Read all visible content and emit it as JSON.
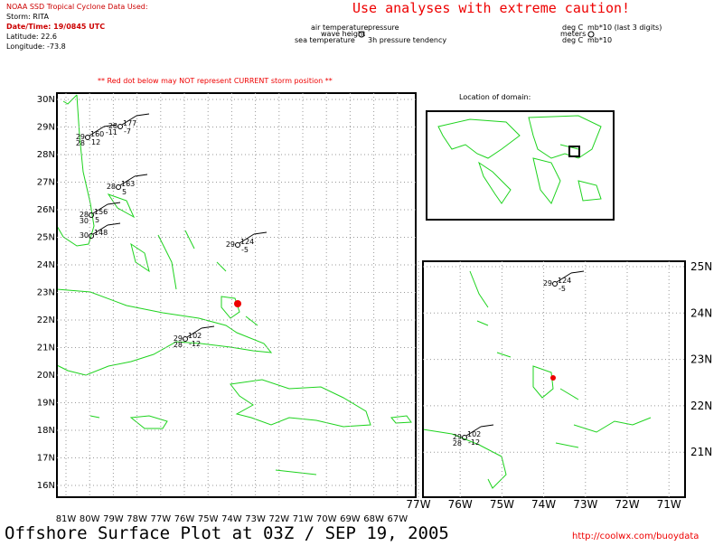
{
  "header": {
    "source": "NOAA SSD Tropical Cyclone Data Used:",
    "storm": "Storm: RITA",
    "datetime": "Date/Time: 19/0845 UTC",
    "latitude": "Latitude: 22.6",
    "longitude": "Longitude: -73.8"
  },
  "caution": "Use analyses with extreme caution!",
  "legend": {
    "air_temperature": "air temperature",
    "pressure": "pressure",
    "wave_height": "wave height",
    "sea_temperature": "sea temperature",
    "tendency": "3h pressure tendency",
    "air_unit": "deg C",
    "pressure_unit": "mb*10 (last 3 digits)",
    "wave_unit": "meters",
    "sea_unit": "deg C",
    "tendency_unit": "mb*10"
  },
  "warning": "** Red dot below may NOT represent CURRENT storm position **",
  "inset_title": "Location of domain:",
  "main_map": {
    "lat_labels": [
      "30N",
      "29N",
      "28N",
      "27N",
      "26N",
      "25N",
      "24N",
      "23N",
      "22N",
      "21N",
      "20N",
      "19N",
      "18N",
      "17N",
      "16N"
    ],
    "lon_labels": [
      "81W",
      "80W",
      "79W",
      "78W",
      "77W",
      "76W",
      "75W",
      "74W",
      "73W",
      "72W",
      "71W",
      "70W",
      "69W",
      "68W",
      "67W"
    ],
    "stations": [
      {
        "t": "29",
        "p": "102",
        "s": "28",
        "d": "-12"
      },
      {
        "t": "29",
        "p": "124",
        "d": "-5"
      },
      {
        "t": "28",
        "p": "163",
        "d": "5"
      },
      {
        "t": "28",
        "p": "156",
        "s": "30",
        "d": "5"
      },
      {
        "t": "29",
        "p": "160",
        "s": "28",
        "d": "12"
      },
      {
        "t": "28",
        "p": "177",
        "s": "-11",
        "d": "-7"
      },
      {
        "t": "30",
        "p": "148"
      }
    ]
  },
  "zoom_map": {
    "lat_labels": [
      "25N",
      "24N",
      "23N",
      "22N",
      "21N"
    ],
    "lon_labels": [
      "77W",
      "76W",
      "75W",
      "74W",
      "73W",
      "72W",
      "71W"
    ],
    "stations": [
      {
        "t": "29",
        "p": "124",
        "d": "-5"
      },
      {
        "t": "29",
        "p": "102",
        "s": "28",
        "d": "-12"
      }
    ]
  },
  "footer": {
    "title": "Offshore Surface Plot at 03Z / SEP 19, 2005",
    "url": "http://coolwx.com/buoydata"
  }
}
